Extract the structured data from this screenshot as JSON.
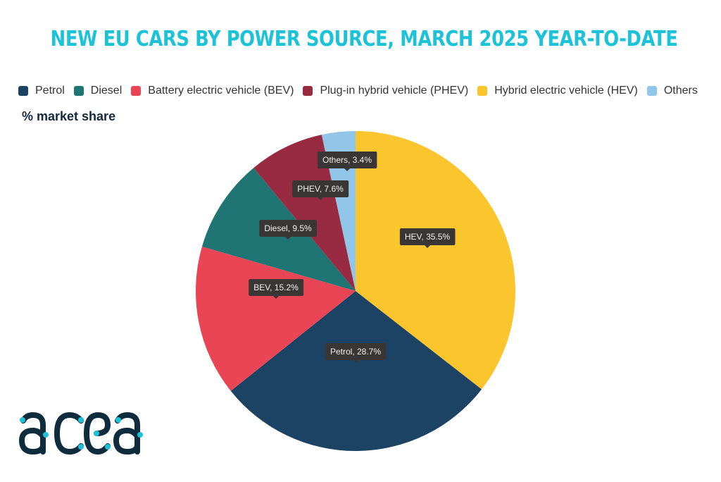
{
  "chart_data": {
    "type": "pie",
    "title": "NEW EU CARS BY POWER SOURCE, MARCH 2025 YEAR-TO-DATE",
    "subtitle": "% market share",
    "unit": "%",
    "legend_position": "top",
    "legend": [
      {
        "label": "Petrol",
        "color": "#1c4363"
      },
      {
        "label": "Diesel",
        "color": "#1e7573"
      },
      {
        "label": "Battery electric vehicle (BEV)",
        "color": "#ea4555"
      },
      {
        "label": "Plug-in hybrid vehicle (PHEV)",
        "color": "#982a42"
      },
      {
        "label": "Hybrid electric vehicle (HEV)",
        "color": "#fbc52e"
      },
      {
        "label": "Others",
        "color": "#91c6e9"
      }
    ],
    "slices": [
      {
        "name": "HEV",
        "value": 35.5,
        "label": "HEV, 35.5%",
        "color": "#fbc52e"
      },
      {
        "name": "Petrol",
        "value": 28.7,
        "label": "Petrol, 28.7%",
        "color": "#1c4363"
      },
      {
        "name": "BEV",
        "value": 15.2,
        "label": "BEV, 15.2%",
        "color": "#ea4555"
      },
      {
        "name": "Diesel",
        "value": 9.5,
        "label": "Diesel, 9.5%",
        "color": "#1e7573"
      },
      {
        "name": "PHEV",
        "value": 7.6,
        "label": "PHEV, 7.6%",
        "color": "#982a42"
      },
      {
        "name": "Others",
        "value": 3.4,
        "label": "Others, 3.4%",
        "color": "#91c6e9"
      }
    ],
    "start_angle": "top",
    "direction": "clockwise"
  },
  "brand": {
    "logo_text": "acea",
    "logo_color": "#0f2b3e",
    "logo_accent": "#1cc3d8"
  }
}
